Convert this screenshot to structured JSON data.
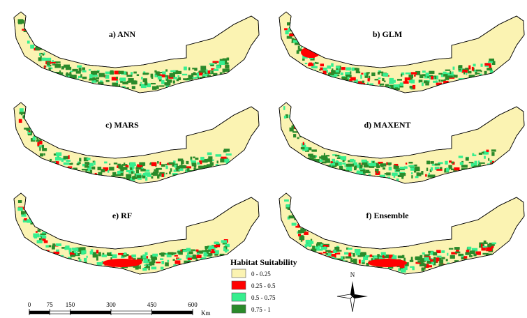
{
  "panels": [
    {
      "label": "a) ANN"
    },
    {
      "label": "b) GLM"
    },
    {
      "label": "c) MARS"
    },
    {
      "label": "d) MAXENT"
    },
    {
      "label": "e) RF"
    },
    {
      "label": "f) Ensemble"
    }
  ],
  "legend": {
    "title": "Habitat Suitability",
    "items": [
      {
        "label": "0 - 0.25",
        "color": "#fbf3b2"
      },
      {
        "label": "0.25 - 0.5",
        "color": "#ff0000"
      },
      {
        "label": "0.5 - 0.75",
        "color": "#36ee8e"
      },
      {
        "label": "0.75 - 1",
        "color": "#2a8a2a"
      }
    ]
  },
  "north_arrow": {
    "label": "N"
  },
  "scale_bar": {
    "ticks": [
      0,
      75,
      150,
      300,
      450,
      600
    ],
    "unit": "Km"
  }
}
